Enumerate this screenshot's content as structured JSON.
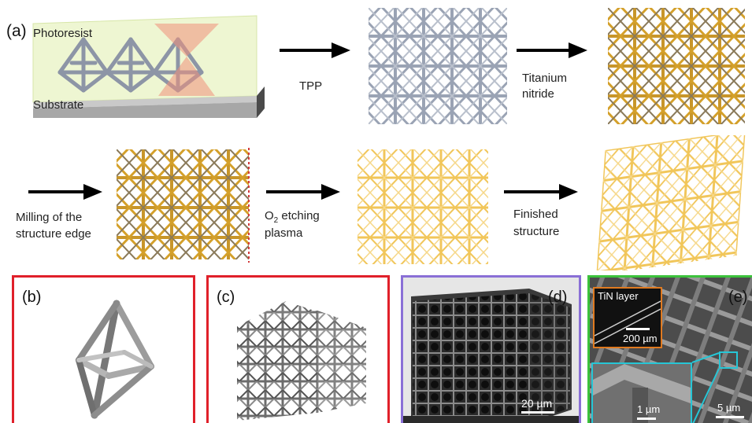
{
  "panel_a": {
    "letter": "(a)",
    "photoresist": "Photoresist",
    "substrate": "Substrate",
    "step1": "TPP",
    "step2_line1": "Titanium",
    "step2_line2": "nitride",
    "step3_line1": "Milling of the",
    "step3_line2": "structure edge",
    "step4_prefix": "O",
    "step4_sub": "2",
    "step4_suffix": " etching",
    "step4_line2": "plasma",
    "step5_line1": "Finished",
    "step5_line2": "structure"
  },
  "panel_b": {
    "letter": "(b)",
    "border_color": "#e0202a"
  },
  "panel_c": {
    "letter": "(c)",
    "border_color": "#e0202a"
  },
  "panel_d": {
    "letter": "(d)",
    "scale": "20 µm",
    "border_color": "#8a6fd6"
  },
  "panel_e": {
    "letter": "(e)",
    "inset_title": "TiN layer",
    "inset_scale": "200 µm",
    "zoom_scale": "1 µm",
    "main_scale": "5 µm",
    "border_color": "#3cc23c",
    "inset_border": "#e07a20",
    "zoom_border": "#26c6d6"
  },
  "colors": {
    "lattice_gray": "#9aa3b4",
    "lattice_gold": "#d4a02a",
    "lattice_light_gold": "#f1c65a",
    "laser": "#f0907a"
  }
}
